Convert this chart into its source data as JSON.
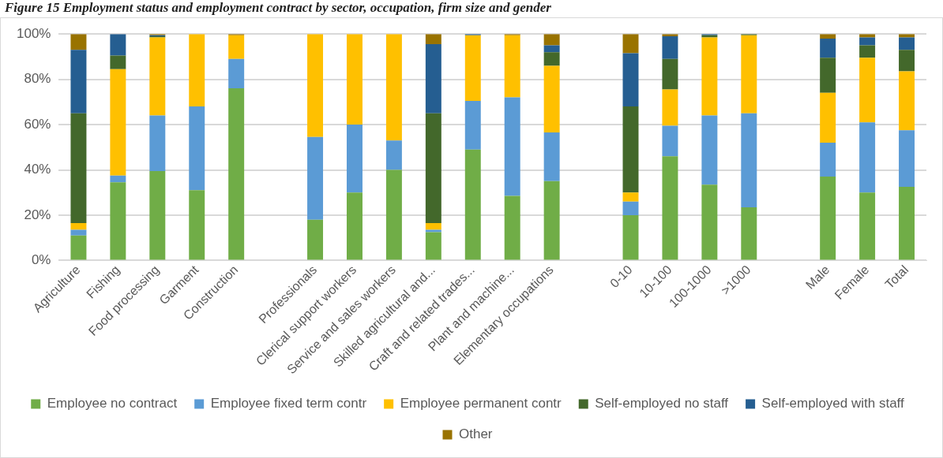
{
  "chart_data": {
    "type": "bar",
    "stacked": true,
    "title": "Figure 15  Employment status and employment contract by sector, occupation, firm size and gender",
    "categories": [
      "Agriculture",
      "Fishing",
      "Food processing",
      "Garment",
      "Construction",
      null,
      "Professionals",
      "Clerical support workers",
      "Service and sales workers",
      "Skilled agricultural and...",
      "Craft and related trades...",
      "Plant and machine...",
      "Elementary occupations",
      null,
      "0-10",
      "10-100",
      "100-1000",
      ">1000",
      null,
      "Male",
      "Female",
      "Total"
    ],
    "series": [
      {
        "name": "Employee no contract",
        "color": "#70ad47",
        "values": [
          11,
          34.5,
          39.5,
          31,
          76,
          null,
          18,
          30,
          40,
          12.5,
          49,
          28.5,
          35,
          null,
          20,
          46,
          33.5,
          23.5,
          null,
          37,
          30,
          32.5
        ]
      },
      {
        "name": "Employee fixed term contr",
        "color": "#5b9bd5",
        "values": [
          2.5,
          3,
          24.5,
          37,
          13,
          null,
          36.5,
          30,
          13,
          1,
          21.5,
          43.5,
          21.5,
          null,
          6,
          13.5,
          30.5,
          41.5,
          null,
          15,
          31,
          25
        ]
      },
      {
        "name": "Employee permanent contr",
        "color": "#ffc000",
        "values": [
          3,
          47,
          34.5,
          32,
          10.5,
          null,
          45.5,
          40,
          47,
          3,
          29,
          27.5,
          29.5,
          null,
          4,
          16,
          34.5,
          34.5,
          null,
          22,
          28.5,
          26
        ]
      },
      {
        "name": "Self-employed no staff",
        "color": "#43682b",
        "values": [
          48.5,
          6,
          0.5,
          0,
          0,
          null,
          0,
          0,
          0,
          48.5,
          0,
          0,
          6,
          null,
          38,
          13.5,
          1,
          0.5,
          null,
          15.5,
          5.5,
          9.5
        ]
      },
      {
        "name": "Self-employed with staff",
        "color": "#255e91",
        "values": [
          28,
          9.5,
          0.5,
          0,
          0,
          null,
          0,
          0,
          0,
          30.5,
          0.5,
          0,
          3,
          null,
          23.5,
          10,
          0.5,
          0,
          null,
          8.5,
          3.5,
          5.5
        ]
      },
      {
        "name": "Other",
        "color": "#997300",
        "values": [
          7,
          0,
          0.5,
          0,
          0.5,
          null,
          0,
          0,
          0,
          4.5,
          0,
          0.5,
          5,
          null,
          8.5,
          1,
          0,
          0,
          null,
          2,
          1.5,
          1.5
        ]
      }
    ],
    "ylim": [
      0,
      100
    ],
    "yticks": [
      {
        "value": 0,
        "label": "0%"
      },
      {
        "value": 20,
        "label": "20%"
      },
      {
        "value": 40,
        "label": "40%"
      },
      {
        "value": 60,
        "label": "60%"
      },
      {
        "value": 80,
        "label": "80%"
      },
      {
        "value": 100,
        "label": "100%"
      }
    ],
    "grid": "y",
    "legend": "bottom"
  }
}
